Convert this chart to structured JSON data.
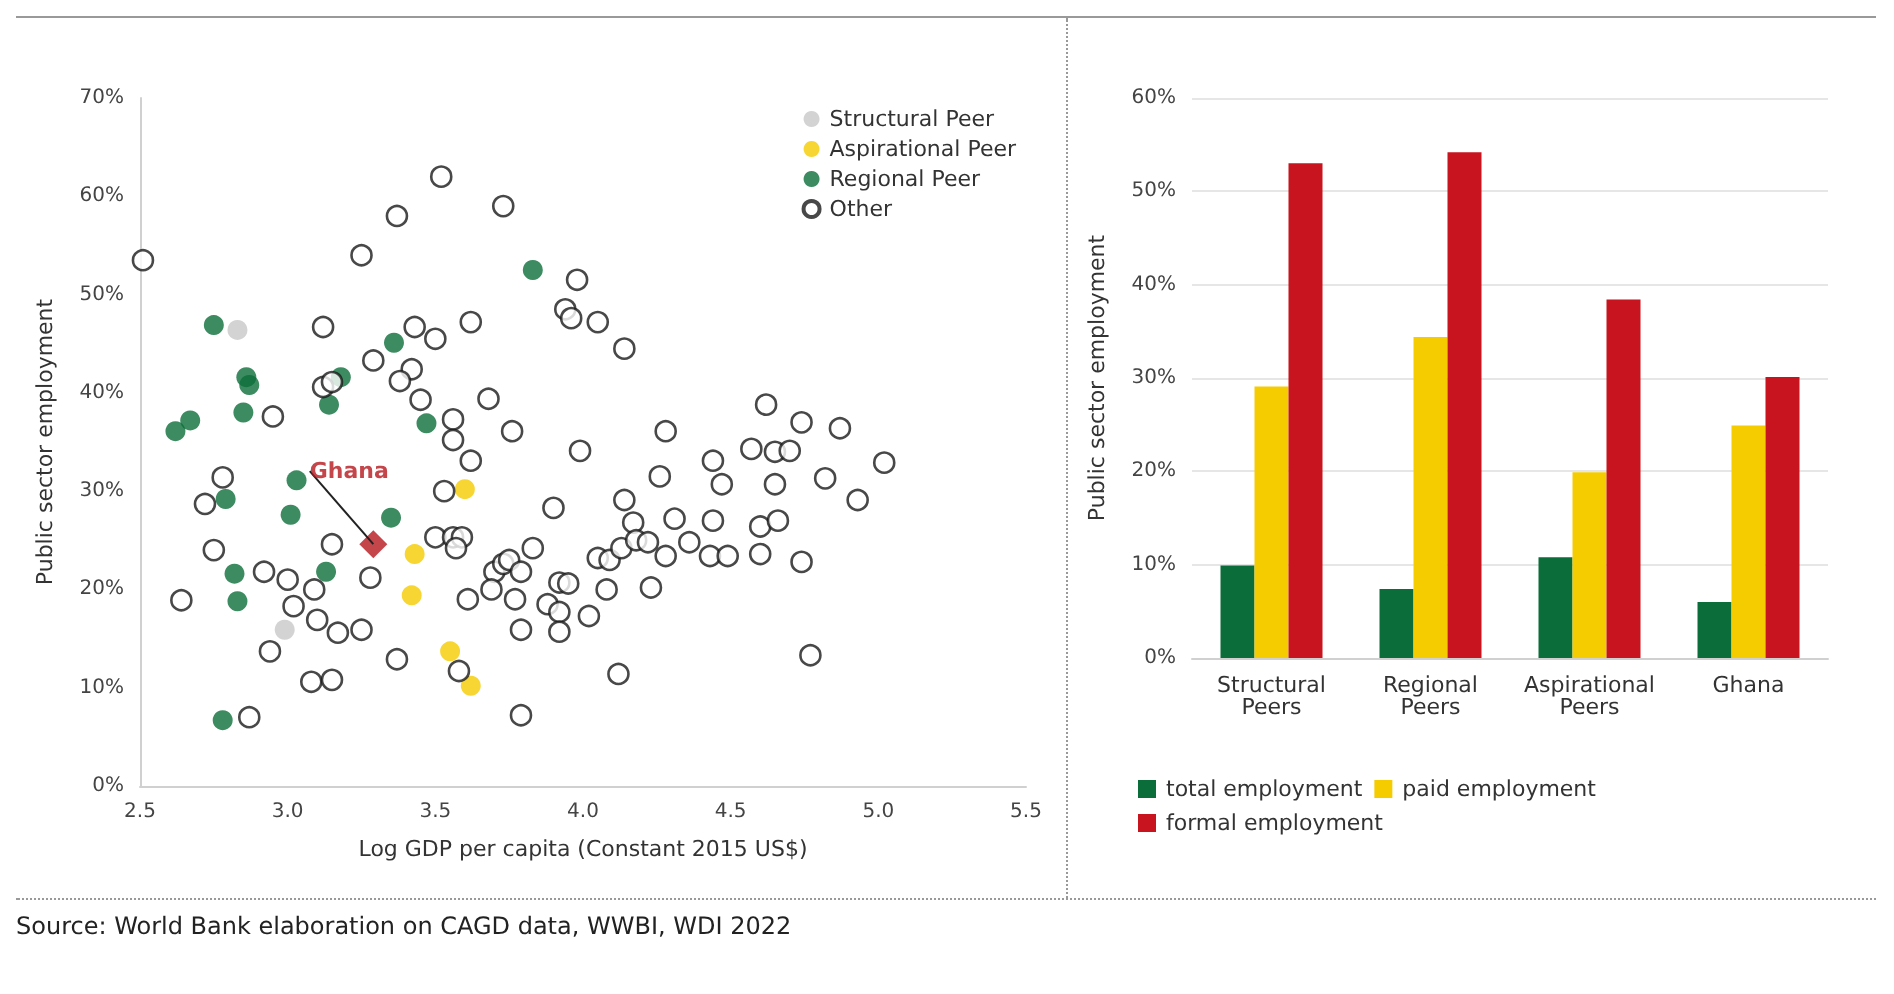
{
  "chart_data": [
    {
      "type": "scatter",
      "xlabel": "Log GDP per capita (Constant 2015 US$)",
      "ylabel": "Public sector employment",
      "xlim": [
        2.5,
        5.5
      ],
      "xticks": [
        2.5,
        {
          "value": 3,
          "label": "3.0"
        },
        3.5,
        {
          "value": 4,
          "label": "4.0"
        },
        4.5,
        {
          "value": 5,
          "label": "5.0"
        },
        5.5
      ],
      "ylim": [
        0,
        70
      ],
      "yticks": [
        {
          "value": 0,
          "label": "0%"
        },
        {
          "value": 10,
          "label": "10%"
        },
        {
          "value": 20,
          "label": "20%"
        },
        {
          "value": 30,
          "label": "30%"
        },
        {
          "value": 40,
          "label": "40%"
        },
        {
          "value": 50,
          "label": "50%"
        },
        {
          "value": 60,
          "label": "60%"
        },
        {
          "value": 70,
          "label": "70%"
        }
      ],
      "grid": false,
      "legend": "top right",
      "marker": "circle",
      "series": [
        {
          "name": "Structural Peer",
          "color": "#c8c8c8",
          "x": [
            2.83,
            2.99
          ],
          "values": [
            46.4,
            15.9
          ]
        },
        {
          "name": "Aspirational Peer",
          "color": "#f5cc00",
          "x": [
            3.6,
            3.43,
            3.42,
            3.55,
            3.62
          ],
          "values": [
            30.2,
            23.6,
            19.4,
            13.7,
            10.2
          ]
        },
        {
          "name": "Regional Peer",
          "color": "#0b6e3a",
          "x": [
            2.75,
            2.86,
            2.87,
            2.85,
            2.62,
            2.67,
            3.18,
            3.14,
            3.36,
            3.47,
            3.83,
            3.03,
            3.01,
            2.79,
            3.35,
            2.82,
            3.13,
            2.83,
            2.78
          ],
          "values": [
            46.9,
            41.6,
            40.8,
            38,
            36.1,
            37.2,
            41.6,
            38.8,
            45.1,
            36.9,
            52.5,
            31.1,
            27.6,
            29.2,
            27.3,
            21.6,
            21.8,
            18.8,
            6.7
          ]
        },
        {
          "name": "Other",
          "color": "#1a1a1a",
          "x": [
            2.51,
            3.52,
            3.37,
            3.25,
            3.73,
            3.12,
            3.43,
            3.5,
            3.62,
            3.29,
            3.42,
            3.38,
            3.12,
            3.15,
            3.45,
            3.68,
            2.95,
            3.56,
            3.56,
            3.76,
            3.62,
            2.78,
            2.72,
            3.53,
            2.75,
            3.15,
            3.5,
            3.56,
            3.59,
            3.57,
            3.83,
            2.64,
            2.92,
            3.0,
            3.02,
            3.09,
            3.28,
            3.61,
            3.7,
            3.73,
            3.75,
            3.69,
            3.77,
            3.79,
            3.79,
            2.94,
            3.1,
            3.17,
            3.25,
            3.08,
            3.15,
            3.37,
            3.58,
            2.87,
            3.79,
            3.98,
            3.94,
            3.96,
            4.05,
            4.14,
            3.99,
            4.28,
            4.62,
            4.74,
            4.87,
            5.02,
            4.57,
            4.65,
            4.7,
            4.44,
            4.47,
            4.65,
            4.82,
            4.93,
            4.26,
            3.9,
            4.14,
            4.17,
            4.31,
            4.44,
            4.6,
            4.66,
            4.05,
            4.09,
            4.13,
            4.18,
            4.22,
            4.28,
            4.36,
            4.43,
            4.49,
            4.6,
            4.74,
            3.88,
            3.92,
            3.95,
            3.92,
            3.92,
            4.02,
            4.08,
            4.23,
            4.12,
            4.77
          ],
          "values": [
            53.5,
            62,
            58,
            54,
            59,
            46.7,
            46.7,
            45.5,
            47.2,
            43.3,
            42.4,
            41.2,
            40.6,
            41.1,
            39.3,
            39.4,
            37.6,
            37.3,
            35.2,
            36.1,
            33.1,
            31.4,
            28.7,
            30,
            24,
            24.6,
            25.3,
            25.3,
            25.3,
            24.2,
            24.2,
            18.9,
            21.8,
            21,
            18.3,
            20,
            21.2,
            19,
            21.8,
            22.6,
            23,
            20,
            19,
            21.8,
            15.9,
            13.7,
            16.9,
            15.6,
            15.9,
            10.6,
            10.8,
            12.9,
            11.7,
            7,
            7.2,
            51.5,
            48.5,
            47.6,
            47.2,
            44.5,
            34.1,
            36.1,
            38.8,
            37,
            36.4,
            32.9,
            34.3,
            34,
            34.1,
            33.1,
            30.7,
            30.7,
            31.3,
            29.1,
            31.5,
            28.3,
            29.1,
            26.8,
            27.2,
            27,
            26.4,
            27,
            23.2,
            23,
            24.2,
            25,
            24.8,
            23.4,
            24.8,
            23.4,
            23.4,
            23.6,
            22.8,
            18.5,
            20.7,
            20.6,
            17.7,
            15.7,
            17.3,
            20,
            20.2,
            11.4,
            13.3
          ]
        },
        {
          "color": "#b5181e",
          "marker": "diamond",
          "x": [
            3.29
          ],
          "values": [
            24.6
          ]
        }
      ],
      "annotations": [
        {
          "text": "Ghana",
          "x": 3.29,
          "y": 24.6
        },
        "Source: World Bank elaboration on CAGD data, WWBI, WDI 2022"
      ]
    },
    {
      "type": "bar",
      "ylabel": "Public sector employment",
      "categories": [
        "Structural Peers",
        "Regional Peers",
        "Aspirational Peers",
        "Ghana"
      ],
      "ylim": [
        0,
        60
      ],
      "yticks": [
        {
          "value": 0,
          "label": "0%"
        },
        {
          "value": 10,
          "label": "10%"
        },
        {
          "value": 20,
          "label": "20%"
        },
        {
          "value": 30,
          "label": "30%"
        },
        {
          "value": 40,
          "label": "40%"
        },
        {
          "value": 50,
          "label": "50%"
        },
        {
          "value": 60,
          "label": "60%"
        }
      ],
      "grid": "y",
      "legend": "bottom",
      "series": [
        {
          "name": "total employment",
          "color": "#0b6e3a",
          "values": [
            9.9,
            7.4,
            10.8,
            6.0
          ]
        },
        {
          "name": "paid employment",
          "color": "#f5cc00",
          "values": [
            29.1,
            34.4,
            19.9,
            24.9
          ]
        },
        {
          "name": "formal employment",
          "color": "#c8141e",
          "values": [
            53.0,
            54.2,
            38.4,
            30.1
          ]
        }
      ]
    }
  ]
}
